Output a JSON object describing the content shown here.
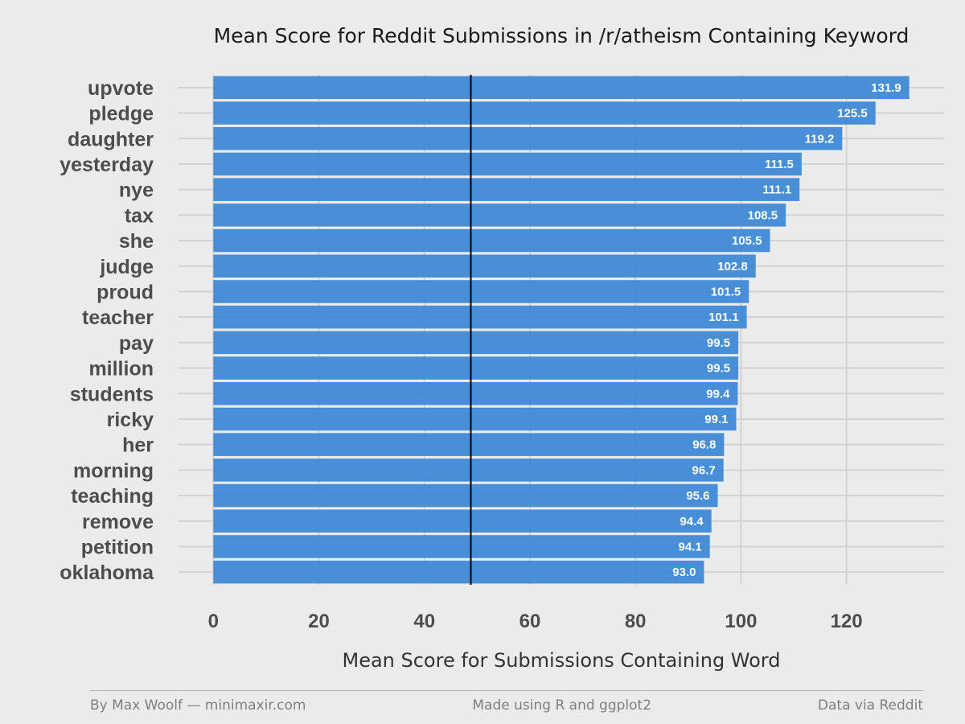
{
  "chart_data": {
    "type": "bar",
    "orientation": "horizontal",
    "title": "Mean Score for Reddit Submissions in /r/atheism Containing Keyword",
    "xlabel": "Mean Score for Submissions Containing Word",
    "ylabel": "",
    "categories": [
      "upvote",
      "pledge",
      "daughter",
      "yesterday",
      "nye",
      "tax",
      "she",
      "judge",
      "proud",
      "teacher",
      "pay",
      "million",
      "students",
      "ricky",
      "her",
      "morning",
      "teaching",
      "remove",
      "petition",
      "oklahoma"
    ],
    "values": [
      131.9,
      125.5,
      119.2,
      111.5,
      111.1,
      108.5,
      105.5,
      102.8,
      101.5,
      101.1,
      99.5,
      99.5,
      99.4,
      99.1,
      96.8,
      96.7,
      95.6,
      94.4,
      94.1,
      93.0
    ],
    "value_labels": [
      "131.9",
      "125.5",
      "119.2",
      "111.5",
      "111.1",
      "108.5",
      "105.5",
      "102.8",
      "101.5",
      "101.1",
      "99.5",
      "99.5",
      "99.4",
      "99.1",
      "96.8",
      "96.7",
      "95.6",
      "94.4",
      "94.1",
      "93.0"
    ],
    "x_ticks": [
      "0",
      "20",
      "40",
      "60",
      "80",
      "100",
      "120"
    ],
    "x_tick_values": [
      0,
      20,
      40,
      60,
      80,
      100,
      120
    ],
    "xlim": [
      -6.6,
      138.5
    ],
    "reference_line": 48.8,
    "grid": true,
    "legend": "none",
    "bar_color": "#3a87d6"
  },
  "footer": {
    "left": "By Max Woolf — minimaxir.com",
    "center": "Made using R and ggplot2",
    "right": "Data via Reddit"
  }
}
